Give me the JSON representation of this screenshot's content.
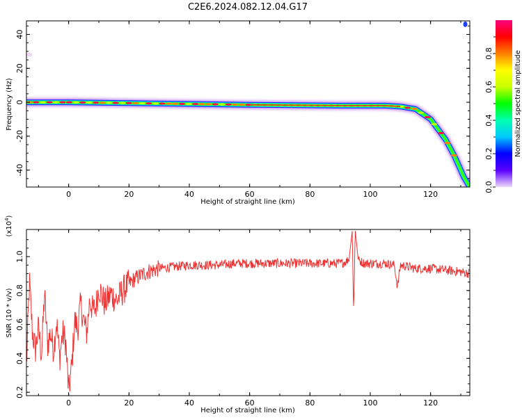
{
  "title": "C2E6.2024.082.12.04.G17",
  "chart_data": [
    {
      "type": "heatmap",
      "xlabel": "Height of straight line (km)",
      "ylabel": "Frequency (Hz)",
      "xlim": [
        -14,
        133
      ],
      "ylim": [
        -50,
        48
      ],
      "xticks": [
        0,
        20,
        40,
        60,
        80,
        100,
        120
      ],
      "yticks": [
        -40,
        -20,
        0,
        20,
        40
      ],
      "colorbar": {
        "label": "Normalized spectral amplitude",
        "range": [
          0,
          1
        ],
        "ticks": [
          "0.0",
          "0.2",
          "0.4",
          "0.6",
          "0.8"
        ],
        "colors": [
          "#eed8f8",
          "#5a00ff",
          "#0000ff",
          "#00c8ff",
          "#00ffb0",
          "#00ff00",
          "#c8ff00",
          "#ffff00",
          "#ff8000",
          "#ff0000",
          "#ff0080"
        ]
      },
      "ridge": [
        {
          "x": -14,
          "y": 0
        },
        {
          "x": 0,
          "y": 0
        },
        {
          "x": 20,
          "y": -0.5
        },
        {
          "x": 60,
          "y": -1.5
        },
        {
          "x": 90,
          "y": -2
        },
        {
          "x": 105,
          "y": -2
        },
        {
          "x": 110,
          "y": -2.5
        },
        {
          "x": 115,
          "y": -4
        },
        {
          "x": 120,
          "y": -10
        },
        {
          "x": 125,
          "y": -22
        },
        {
          "x": 128,
          "y": -32
        },
        {
          "x": 131,
          "y": -44
        },
        {
          "x": 133,
          "y": -50
        }
      ]
    },
    {
      "type": "line",
      "xlabel": "Height of straight line (km)",
      "ylabel": "SNR (10 * v/v)",
      "yscale_label": "(x10",
      "yscale_exp": "4",
      "yscale_close": ")",
      "xlim": [
        -14,
        133
      ],
      "ylim": [
        0.18,
        1.16
      ],
      "xticks": [
        0,
        20,
        40,
        60,
        80,
        100,
        120
      ],
      "yticks": [
        "0.2",
        "0.4",
        "0.6",
        "0.8",
        "1.0"
      ],
      "series": [
        {
          "color": "#ee3333",
          "points": [
            [
              -14,
              0.35
            ],
            [
              -13,
              0.85
            ],
            [
              -12,
              0.55
            ],
            [
              -11,
              0.45
            ],
            [
              -10,
              0.58
            ],
            [
              -9,
              0.42
            ],
            [
              -8,
              0.78
            ],
            [
              -7,
              0.48
            ],
            [
              -6,
              0.55
            ],
            [
              -5,
              0.45
            ],
            [
              -4,
              0.62
            ],
            [
              -3,
              0.4
            ],
            [
              -2,
              0.55
            ],
            [
              -1,
              0.5
            ],
            [
              0,
              0.2
            ],
            [
              1,
              0.35
            ],
            [
              2,
              0.62
            ],
            [
              3,
              0.58
            ],
            [
              4,
              0.72
            ],
            [
              5,
              0.62
            ],
            [
              6,
              0.55
            ],
            [
              7,
              0.75
            ],
            [
              8,
              0.68
            ],
            [
              9,
              0.7
            ],
            [
              10,
              0.82
            ],
            [
              12,
              0.72
            ],
            [
              14,
              0.78
            ],
            [
              16,
              0.74
            ],
            [
              18,
              0.8
            ],
            [
              20,
              0.84
            ],
            [
              22,
              0.87
            ],
            [
              24,
              0.89
            ],
            [
              26,
              0.91
            ],
            [
              28,
              0.92
            ],
            [
              30,
              0.93
            ],
            [
              35,
              0.94
            ],
            [
              40,
              0.95
            ],
            [
              45,
              0.95
            ],
            [
              50,
              0.95
            ],
            [
              55,
              0.96
            ],
            [
              60,
              0.96
            ],
            [
              65,
              0.96
            ],
            [
              70,
              0.96
            ],
            [
              75,
              0.96
            ],
            [
              80,
              0.96
            ],
            [
              85,
              0.96
            ],
            [
              90,
              0.96
            ],
            [
              92,
              0.97
            ],
            [
              93,
              0.99
            ],
            [
              94,
              1.15
            ],
            [
              94.5,
              0.66
            ],
            [
              95,
              1.16
            ],
            [
              96,
              0.98
            ],
            [
              98,
              0.96
            ],
            [
              100,
              0.96
            ],
            [
              105,
              0.96
            ],
            [
              108,
              0.95
            ],
            [
              109,
              0.82
            ],
            [
              110,
              0.95
            ],
            [
              115,
              0.93
            ],
            [
              120,
              0.93
            ],
            [
              125,
              0.92
            ],
            [
              130,
              0.91
            ],
            [
              133,
              0.9
            ]
          ]
        }
      ]
    }
  ]
}
